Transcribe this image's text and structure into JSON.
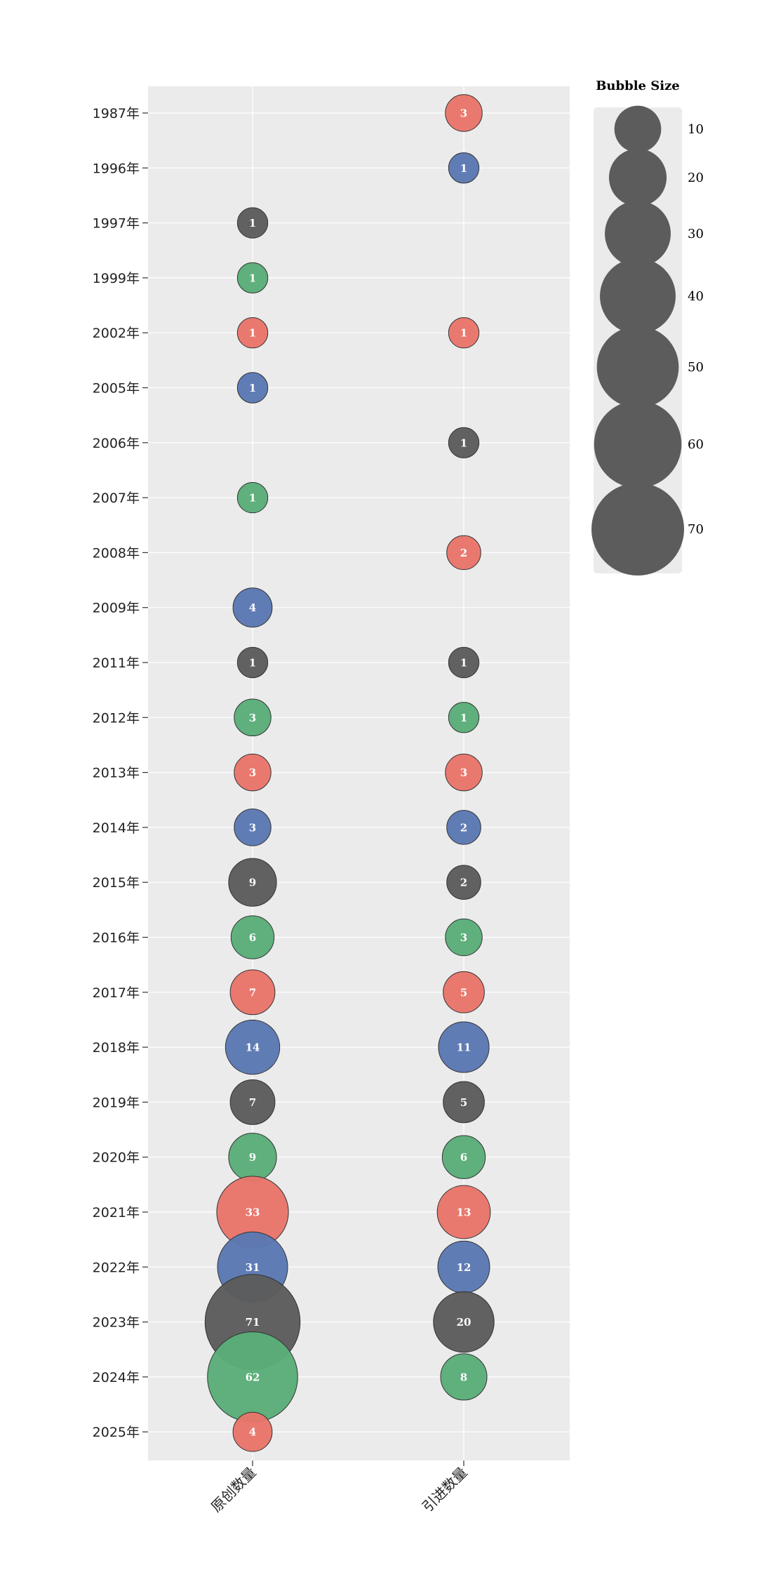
{
  "chart_data": {
    "type": "scatter",
    "subtype": "bubble",
    "title": "",
    "xlabel": "",
    "ylabel": "",
    "grid": true,
    "categories": [
      "原创数量",
      "引进数量"
    ],
    "years": [
      "1987年",
      "1996年",
      "1997年",
      "1999年",
      "2002年",
      "2005年",
      "2006年",
      "2007年",
      "2008年",
      "2009年",
      "2011年",
      "2012年",
      "2013年",
      "2014年",
      "2015年",
      "2016年",
      "2017年",
      "2018年",
      "2019年",
      "2020年",
      "2021年",
      "2022年",
      "2023年",
      "2024年",
      "2025年"
    ],
    "year_colors": [
      "#e8756a",
      "#5b78b3",
      "#5c5c5c",
      "#5aad78"
    ],
    "points": [
      {
        "year": "1987年",
        "category": "引进数量",
        "value": 3,
        "label": "3"
      },
      {
        "year": "1996年",
        "category": "引进数量",
        "value": 1,
        "label": "1"
      },
      {
        "year": "1997年",
        "category": "原创数量",
        "value": 1,
        "label": "1"
      },
      {
        "year": "1999年",
        "category": "原创数量",
        "value": 1,
        "label": "1"
      },
      {
        "year": "2002年",
        "category": "原创数量",
        "value": 1,
        "label": "1"
      },
      {
        "year": "2002年",
        "category": "引进数量",
        "value": 1,
        "label": "1"
      },
      {
        "year": "2005年",
        "category": "原创数量",
        "value": 1,
        "label": "1"
      },
      {
        "year": "2006年",
        "category": "引进数量",
        "value": 1,
        "label": "1"
      },
      {
        "year": "2007年",
        "category": "原创数量",
        "value": 1,
        "label": "1"
      },
      {
        "year": "2008年",
        "category": "引进数量",
        "value": 2,
        "label": "2"
      },
      {
        "year": "2009年",
        "category": "原创数量",
        "value": 4,
        "label": "4"
      },
      {
        "year": "2011年",
        "category": "原创数量",
        "value": 1,
        "label": "1"
      },
      {
        "year": "2011年",
        "category": "引进数量",
        "value": 1,
        "label": "1"
      },
      {
        "year": "2012年",
        "category": "原创数量",
        "value": 3,
        "label": "3"
      },
      {
        "year": "2012年",
        "category": "引进数量",
        "value": 1,
        "label": "1"
      },
      {
        "year": "2013年",
        "category": "原创数量",
        "value": 3,
        "label": "3"
      },
      {
        "year": "2013年",
        "category": "引进数量",
        "value": 3,
        "label": "3"
      },
      {
        "year": "2014年",
        "category": "原创数量",
        "value": 3,
        "label": "3"
      },
      {
        "year": "2014年",
        "category": "引进数量",
        "value": 2,
        "label": "2"
      },
      {
        "year": "2015年",
        "category": "原创数量",
        "value": 9,
        "label": "9"
      },
      {
        "year": "2015年",
        "category": "引进数量",
        "value": 2,
        "label": "2"
      },
      {
        "year": "2016年",
        "category": "原创数量",
        "value": 6,
        "label": "6"
      },
      {
        "year": "2016年",
        "category": "引进数量",
        "value": 3,
        "label": "3"
      },
      {
        "year": "2017年",
        "category": "原创数量",
        "value": 7,
        "label": "7"
      },
      {
        "year": "2017年",
        "category": "引进数量",
        "value": 5,
        "label": "5"
      },
      {
        "year": "2018年",
        "category": "原创数量",
        "value": 14,
        "label": "14"
      },
      {
        "year": "2018年",
        "category": "引进数量",
        "value": 11,
        "label": "11"
      },
      {
        "year": "2019年",
        "category": "原创数量",
        "value": 7,
        "label": "7"
      },
      {
        "year": "2019年",
        "category": "引进数量",
        "value": 5,
        "label": "5"
      },
      {
        "year": "2020年",
        "category": "原创数量",
        "value": 9,
        "label": "9"
      },
      {
        "year": "2020年",
        "category": "引进数量",
        "value": 6,
        "label": "6"
      },
      {
        "year": "2021年",
        "category": "原创数量",
        "value": 33,
        "label": "33"
      },
      {
        "year": "2021年",
        "category": "引进数量",
        "value": 13,
        "label": "13"
      },
      {
        "year": "2022年",
        "category": "原创数量",
        "value": 31,
        "label": "31"
      },
      {
        "year": "2022年",
        "category": "引进数量",
        "value": 12,
        "label": "12"
      },
      {
        "year": "2023年",
        "category": "原创数量",
        "value": 71,
        "label": "71"
      },
      {
        "year": "2023年",
        "category": "引进数量",
        "value": 20,
        "label": "20"
      },
      {
        "year": "2024年",
        "category": "原创数量",
        "value": 62,
        "label": "62"
      },
      {
        "year": "2024年",
        "category": "引进数量",
        "value": 8,
        "label": "8"
      },
      {
        "year": "2025年",
        "category": "原创数量",
        "value": 4,
        "label": "4"
      }
    ],
    "legend": {
      "title": "Bubble Size",
      "placement": "right",
      "color": "#5c5c5c",
      "sizes": [
        10,
        20,
        30,
        40,
        50,
        60,
        70
      ],
      "labels": [
        "10",
        "20",
        "30",
        "40",
        "50",
        "60",
        "70"
      ]
    },
    "panel_color": "#ebebeb",
    "grid_color": "#ffffff"
  }
}
